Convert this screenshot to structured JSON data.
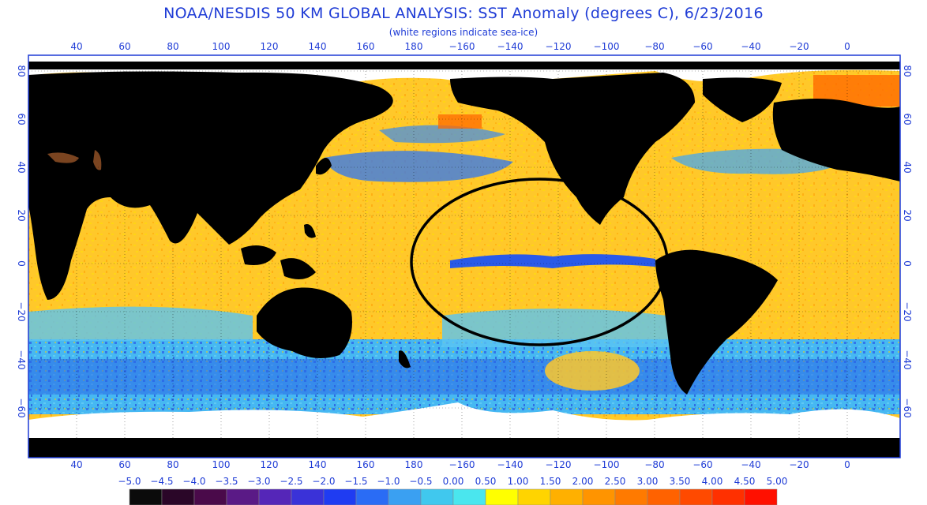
{
  "title": "NOAA/NESDIS 50 KM GLOBAL ANALYSIS: SST Anomaly (degrees C), 6/23/2016",
  "subtitle": "(white regions indicate sea-ice)",
  "longitude_ticks": [
    "40",
    "60",
    "80",
    "100",
    "120",
    "140",
    "160",
    "180",
    "−160",
    "−140",
    "−120",
    "−100",
    "−80",
    "−60",
    "−40",
    "−20",
    "0"
  ],
  "latitude_ticks": [
    "80",
    "60",
    "40",
    "20",
    "0",
    "−20",
    "−40",
    "−60"
  ],
  "colorbar": {
    "labels": [
      "−5.0",
      "−4.5",
      "−4.0",
      "−3.5",
      "−3.0",
      "−2.5",
      "−2.0",
      "−1.5",
      "−1.0",
      "−0.5",
      "0.00",
      "0.50",
      "1.00",
      "1.50",
      "2.00",
      "2.50",
      "3.00",
      "3.50",
      "4.00",
      "4.50",
      "5.00"
    ],
    "colors": [
      "#0b0b0b",
      "#2a0628",
      "#4a0a4a",
      "#5a1a86",
      "#5526b8",
      "#3a32d8",
      "#1f3cf2",
      "#2a6cf5",
      "#3aa0f2",
      "#40c8ee",
      "#4ae6ee",
      "#ffff00",
      "#ffd400",
      "#ffb000",
      "#ff9400",
      "#ff7a00",
      "#ff6200",
      "#ff4a00",
      "#ff3000",
      "#ff1000"
    ]
  },
  "colors": {
    "land": "#000000",
    "ice": "#ffffff",
    "warm_ocean": "#ffc82a",
    "cool_ocean": "#3ab4f0",
    "cold_ocean": "#2a5ae8",
    "label_blue": "#1f3cd6"
  }
}
